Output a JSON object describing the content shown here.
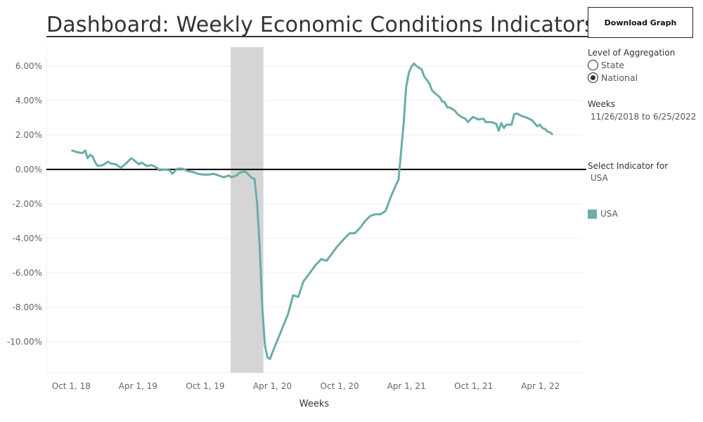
{
  "header": {
    "title": "Dashboard: Weekly Economic Conditions Indicators"
  },
  "controls": {
    "download_label": "Download Graph",
    "aggregation": {
      "label": "Level of Aggregation",
      "options": [
        "State",
        "National"
      ],
      "selected": "National"
    },
    "weeks": {
      "label": "Weeks",
      "range": "11/26/2018 to 6/25/2022"
    },
    "indicator": {
      "label": "Select Indicator for",
      "value": "USA"
    }
  },
  "legend": {
    "items": [
      {
        "name": "USA",
        "color": "#6aada9"
      }
    ]
  },
  "colors": {
    "series": "#6aada9",
    "shade": "#d5d5d5",
    "zero_line": "#000000",
    "grid": "#eeeeee"
  },
  "chart_data": {
    "type": "line",
    "title": "Dashboard: Weekly Economic Conditions Indicators",
    "xlabel": "Weeks",
    "ylabel": "",
    "x_ticks": [
      "2018-10-01",
      "2019-04-01",
      "2019-10-01",
      "2020-04-01",
      "2020-10-01",
      "2021-04-01",
      "2021-10-01",
      "2022-04-01"
    ],
    "x_tick_labels": [
      "Oct 1, 18",
      "Apr 1, 19",
      "Oct 1, 19",
      "Apr 1, 20",
      "Oct 1, 20",
      "Apr 1, 21",
      "Oct 1, 21",
      "Apr 1, 22"
    ],
    "y_ticks": [
      6,
      4,
      2,
      0,
      -2,
      -4,
      -6,
      -8,
      -10
    ],
    "y_tick_labels": [
      "6.00%",
      "4.00%",
      "2.00%",
      "0.00%",
      "-2.00%",
      "-4.00%",
      "-6.00%",
      "-8.00%",
      "-10.00%"
    ],
    "ylim": [
      -11.8,
      7.1
    ],
    "xlim": [
      "2018-09-17",
      "2022-09-15"
    ],
    "shaded_period": {
      "start": "2020-02-01",
      "end": "2020-04-30"
    },
    "reference_line": 0,
    "series": [
      {
        "name": "USA",
        "color": "#6aada9",
        "points": [
          [
            "2018-11-26",
            1.1
          ],
          [
            "2018-12-10",
            1.0
          ],
          [
            "2018-12-24",
            0.95
          ],
          [
            "2019-01-01",
            1.1
          ],
          [
            "2019-01-07",
            0.65
          ],
          [
            "2019-01-14",
            0.85
          ],
          [
            "2019-01-21",
            0.75
          ],
          [
            "2019-01-28",
            0.4
          ],
          [
            "2019-02-04",
            0.2
          ],
          [
            "2019-02-18",
            0.25
          ],
          [
            "2019-03-04",
            0.45
          ],
          [
            "2019-03-11",
            0.35
          ],
          [
            "2019-03-25",
            0.3
          ],
          [
            "2019-04-08",
            0.1
          ],
          [
            "2019-04-22",
            0.35
          ],
          [
            "2019-05-06",
            0.65
          ],
          [
            "2019-05-13",
            0.55
          ],
          [
            "2019-05-27",
            0.3
          ],
          [
            "2019-06-03",
            0.4
          ],
          [
            "2019-06-17",
            0.2
          ],
          [
            "2019-07-01",
            0.25
          ],
          [
            "2019-07-15",
            0.1
          ],
          [
            "2019-07-22",
            -0.05
          ],
          [
            "2019-08-05",
            0.0
          ],
          [
            "2019-08-19",
            -0.05
          ],
          [
            "2019-08-26",
            -0.25
          ],
          [
            "2019-09-09",
            0.05
          ],
          [
            "2019-09-23",
            0.05
          ],
          [
            "2019-10-07",
            -0.1
          ],
          [
            "2019-10-21",
            -0.15
          ],
          [
            "2019-11-04",
            -0.25
          ],
          [
            "2019-11-18",
            -0.3
          ],
          [
            "2019-12-02",
            -0.3
          ],
          [
            "2019-12-16",
            -0.25
          ],
          [
            "2019-12-30",
            -0.35
          ],
          [
            "2020-01-13",
            -0.45
          ],
          [
            "2020-01-27",
            -0.35
          ],
          [
            "2020-02-03",
            -0.45
          ],
          [
            "2020-02-10",
            -0.4
          ],
          [
            "2020-02-17",
            -0.35
          ],
          [
            "2020-02-24",
            -0.2
          ],
          [
            "2020-03-02",
            -0.15
          ],
          [
            "2020-03-09",
            -0.1
          ],
          [
            "2020-03-16",
            -0.2
          ],
          [
            "2020-03-23",
            -0.35
          ],
          [
            "2020-03-30",
            -0.5
          ],
          [
            "2020-04-06",
            -0.55
          ],
          [
            "2020-04-13",
            -2.0
          ],
          [
            "2020-04-20",
            -4.5
          ],
          [
            "2020-04-27",
            -8.0
          ],
          [
            "2020-05-04",
            -10.2
          ],
          [
            "2020-05-11",
            -10.9
          ],
          [
            "2020-05-18",
            -11.0
          ],
          [
            "2020-05-25",
            -10.6
          ],
          [
            "2020-06-15",
            -9.5
          ],
          [
            "2020-07-06",
            -8.4
          ],
          [
            "2020-07-20",
            -7.3
          ],
          [
            "2020-08-03",
            -7.4
          ],
          [
            "2020-08-17",
            -6.5
          ],
          [
            "2020-09-07",
            -5.9
          ],
          [
            "2020-09-21",
            -5.5
          ],
          [
            "2020-10-05",
            -5.2
          ],
          [
            "2020-10-19",
            -5.3
          ],
          [
            "2020-11-02",
            -4.9
          ],
          [
            "2020-11-16",
            -4.5
          ],
          [
            "2020-12-07",
            -4.0
          ],
          [
            "2020-12-21",
            -3.7
          ],
          [
            "2021-01-04",
            -3.7
          ],
          [
            "2021-01-18",
            -3.4
          ],
          [
            "2021-02-01",
            -3.0
          ],
          [
            "2021-02-15",
            -2.7
          ],
          [
            "2021-03-01",
            -2.6
          ],
          [
            "2021-03-15",
            -2.6
          ],
          [
            "2021-03-29",
            -2.4
          ],
          [
            "2021-04-12",
            -1.6
          ],
          [
            "2021-04-26",
            -0.9
          ],
          [
            "2021-05-03",
            -0.6
          ],
          [
            "2021-05-17",
            2.7
          ],
          [
            "2021-05-24",
            4.8
          ],
          [
            "2021-05-31",
            5.6
          ],
          [
            "2021-06-07",
            5.95
          ],
          [
            "2021-06-14",
            6.15
          ],
          [
            "2021-06-21",
            6.0
          ],
          [
            "2021-07-05",
            5.8
          ],
          [
            "2021-07-12",
            5.4
          ],
          [
            "2021-07-26",
            5.0
          ],
          [
            "2021-08-02",
            4.6
          ],
          [
            "2021-08-09",
            4.45
          ],
          [
            "2021-08-23",
            4.2
          ],
          [
            "2021-08-30",
            3.95
          ],
          [
            "2021-09-06",
            3.9
          ],
          [
            "2021-09-13",
            3.6
          ],
          [
            "2021-09-20",
            3.6
          ],
          [
            "2021-10-04",
            3.4
          ],
          [
            "2021-10-11",
            3.2
          ],
          [
            "2021-10-25",
            3.0
          ],
          [
            "2021-11-01",
            2.95
          ],
          [
            "2021-11-08",
            2.75
          ],
          [
            "2021-11-22",
            3.05
          ],
          [
            "2021-12-06",
            2.9
          ],
          [
            "2021-12-20",
            2.95
          ],
          [
            "2021-12-27",
            2.75
          ],
          [
            "2022-01-10",
            2.75
          ],
          [
            "2022-01-24",
            2.65
          ],
          [
            "2022-01-31",
            2.25
          ],
          [
            "2022-02-07",
            2.7
          ],
          [
            "2022-02-14",
            2.4
          ],
          [
            "2022-02-21",
            2.6
          ],
          [
            "2022-03-07",
            2.6
          ],
          [
            "2022-03-14",
            3.2
          ],
          [
            "2022-03-21",
            3.25
          ],
          [
            "2022-04-04",
            3.1
          ],
          [
            "2022-04-18",
            3.0
          ],
          [
            "2022-05-02",
            2.85
          ],
          [
            "2022-05-16",
            2.5
          ],
          [
            "2022-05-23",
            2.6
          ],
          [
            "2022-05-30",
            2.4
          ],
          [
            "2022-06-06",
            2.35
          ],
          [
            "2022-06-13",
            2.2
          ],
          [
            "2022-06-20",
            2.15
          ],
          [
            "2022-06-25",
            2.05
          ]
        ]
      }
    ],
    "grid": true,
    "legend_position": "right"
  }
}
